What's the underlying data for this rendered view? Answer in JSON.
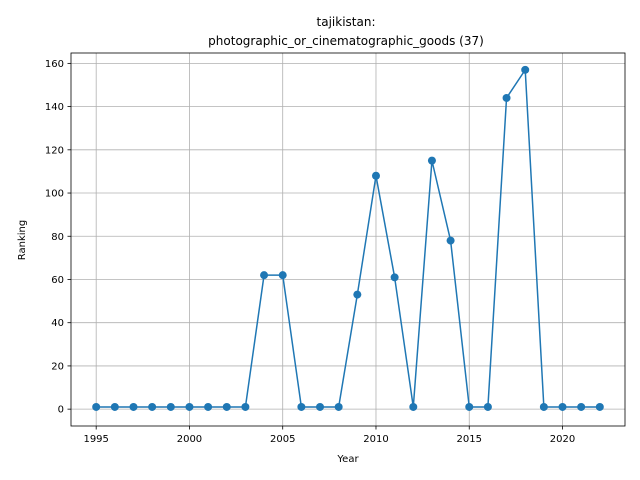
{
  "chart_data": {
    "type": "line",
    "title_line1": "tajikistan:",
    "title_line2": "photographic_or_cinematographic_goods (37)",
    "xlabel": "Year",
    "ylabel": "Ranking",
    "xlim": [
      1993.65,
      2023.35
    ],
    "ylim": [
      -7.8,
      164.8
    ],
    "xticks": [
      1995,
      2000,
      2005,
      2010,
      2015,
      2020
    ],
    "yticks": [
      0,
      20,
      40,
      60,
      80,
      100,
      120,
      140,
      160
    ],
    "grid": true,
    "color": "#1f77b4",
    "series": [
      {
        "x": [
          1995,
          1996,
          1997,
          1998,
          1999,
          2000,
          2001,
          2002,
          2003,
          2004,
          2005,
          2006,
          2007,
          2008,
          2009,
          2010,
          2011,
          2012,
          2013,
          2014,
          2015,
          2016,
          2017,
          2018,
          2019,
          2020,
          2021,
          2022
        ],
        "y": [
          1,
          1,
          1,
          1,
          1,
          1,
          1,
          1,
          1,
          62,
          62,
          1,
          1,
          1,
          53,
          108,
          61,
          1,
          115,
          78,
          1,
          1,
          144,
          157,
          1,
          1,
          1,
          1
        ]
      }
    ]
  }
}
